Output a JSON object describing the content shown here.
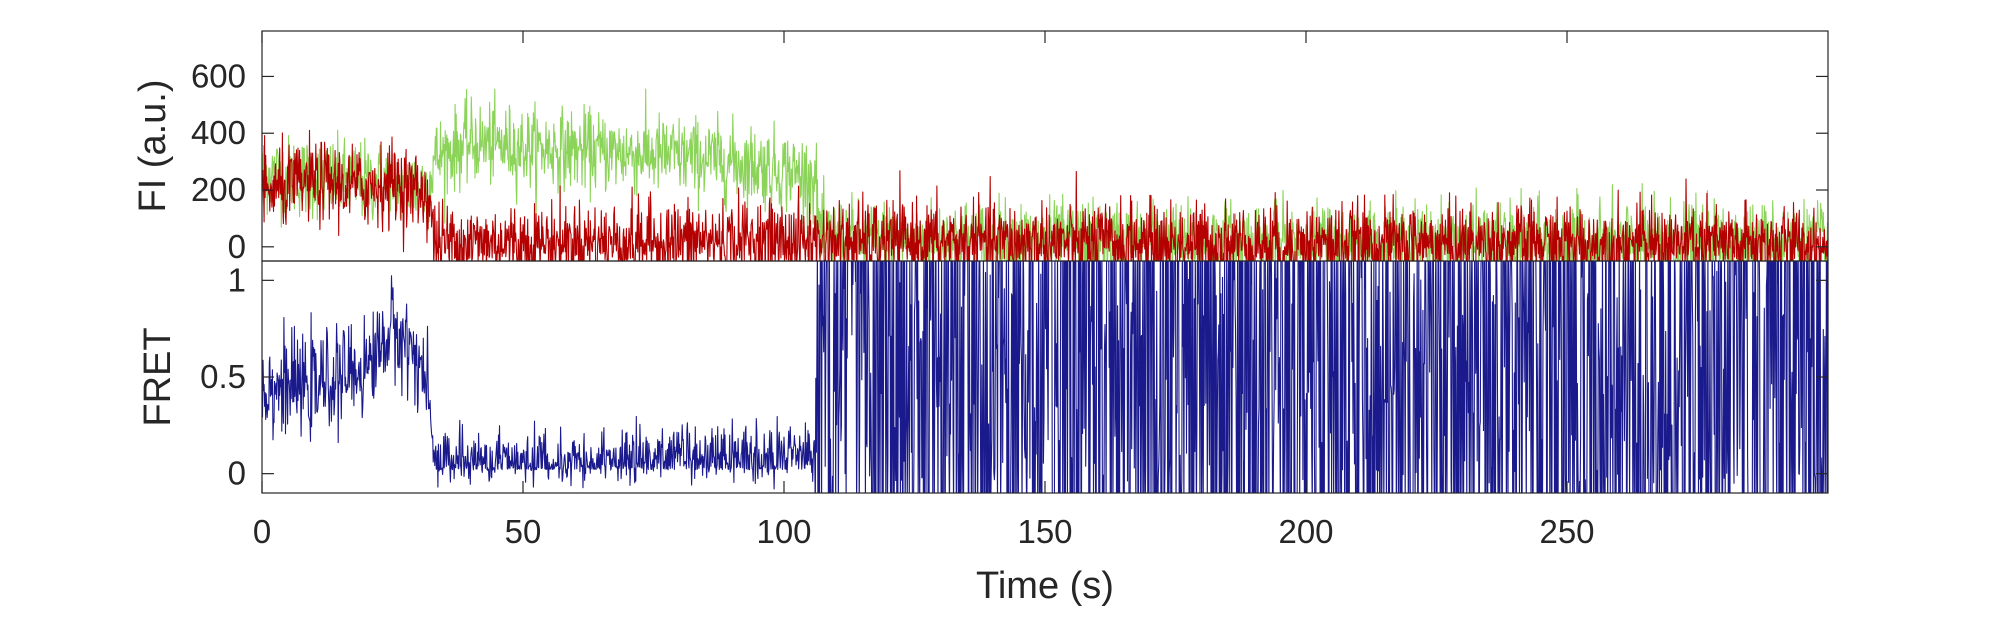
{
  "chart_data": [
    {
      "type": "line",
      "panel": "top",
      "ylabel": "FI (a.u.)",
      "xlabel": "",
      "xlim": [
        0,
        300
      ],
      "ylim": [
        -50,
        760
      ],
      "yticks": [
        0,
        200,
        400,
        600
      ],
      "grid": false,
      "series": [
        {
          "color": "#8cd35a",
          "x": [
            0,
            10,
            20,
            32,
            33,
            40,
            50,
            60,
            70,
            80,
            90,
            100,
            106,
            107,
            120,
            150,
            200,
            250,
            300
          ],
          "values": [
            260,
            240,
            230,
            210,
            310,
            370,
            350,
            340,
            330,
            320,
            300,
            270,
            240,
            30,
            25,
            20,
            15,
            15,
            15
          ]
        },
        {
          "color": "#b40000",
          "x": [
            0,
            10,
            20,
            25,
            32,
            33,
            50,
            100,
            106,
            150,
            200,
            250,
            300
          ],
          "values": [
            190,
            230,
            210,
            230,
            180,
            20,
            15,
            25,
            20,
            15,
            10,
            10,
            5
          ]
        }
      ]
    },
    {
      "type": "line",
      "panel": "bottom",
      "xlabel": "Time (s)",
      "ylabel": "FRET",
      "xlim": [
        0,
        300
      ],
      "ylim": [
        -0.1,
        1.1
      ],
      "yticks": [
        0,
        0.5,
        1
      ],
      "xticks": [
        0,
        50,
        100,
        150,
        200,
        250
      ],
      "grid": false,
      "series": [
        {
          "color": "#1a1a8c",
          "x": [
            0,
            10,
            20,
            25,
            30,
            32,
            33,
            50,
            80,
            100,
            106,
            107,
            150,
            200,
            250,
            300
          ],
          "values": [
            0.45,
            0.45,
            0.55,
            0.75,
            0.6,
            0.4,
            0.05,
            0.05,
            0.08,
            0.1,
            0.12,
            0.6,
            0.55,
            0.5,
            0.5,
            0.5
          ]
        }
      ]
    }
  ]
}
